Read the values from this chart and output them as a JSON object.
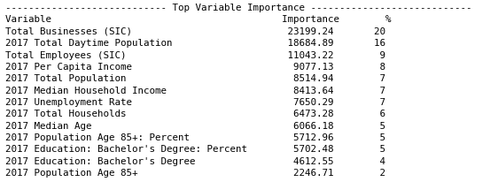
{
  "title": "Top Variable Importance",
  "title_dashes_left": "----------------------------",
  "title_dashes_right": "----------------------------",
  "header": "Variable                                        Importance        %",
  "rows": [
    "Total Businesses (SIC)                           23199.24       20",
    "2017 Total Daytime Population                    18684.89       16",
    "Total Employees (SIC)                            11043.22        9",
    "2017 Per Capita Income                            9077.13        8",
    "2017 Total Population                             8514.94        7",
    "2017 Median Household Income                      8413.64        7",
    "2017 Unemployment Rate                            7650.29        7",
    "2017 Total Households                             6473.28        6",
    "2017 Median Age                                   6066.18        5",
    "2017 Population Age 85+: Percent                  5712.96        5",
    "2017 Education: Bachelor's Degree: Percent        5702.48        5",
    "2017 Education: Bachelor's Degree                 4612.55        4",
    "2017 Population Age 85+                           2246.71        2"
  ],
  "bg_color": "#ffffff",
  "text_color": "#000000",
  "font_family": "monospace",
  "font_size": 7.8,
  "fig_width": 5.62,
  "fig_height": 2.07,
  "dpi": 100
}
